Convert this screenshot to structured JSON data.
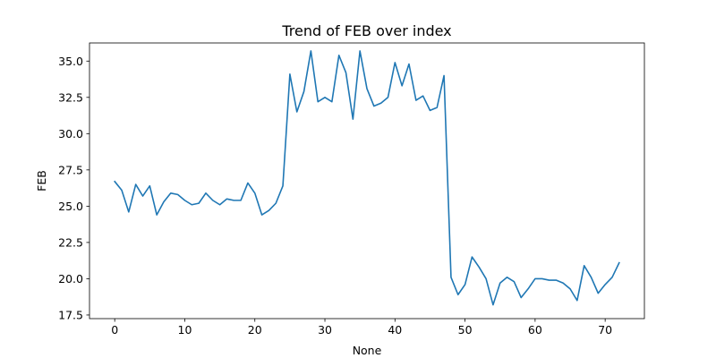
{
  "chart_data": {
    "type": "line",
    "title": "Trend of FEB over index",
    "xlabel": "None",
    "ylabel": "FEB",
    "xlim": [
      -3.6,
      75.6
    ],
    "ylim": [
      17.25,
      36.25
    ],
    "x_ticks": [
      0,
      10,
      20,
      30,
      40,
      50,
      60,
      70
    ],
    "y_ticks": [
      17.5,
      20.0,
      22.5,
      25.0,
      27.5,
      30.0,
      32.5,
      35.0
    ],
    "grid": false,
    "line_color": "#1f77b4",
    "series": [
      {
        "x": [
          0,
          1,
          2,
          3,
          4,
          5,
          6,
          7,
          8,
          9,
          10,
          11,
          12,
          13,
          14,
          15,
          16,
          17,
          18,
          19,
          20,
          21,
          22,
          23,
          24,
          25,
          26,
          27,
          28,
          29,
          30,
          31,
          32,
          33,
          34,
          35,
          36,
          37,
          38,
          39,
          40,
          41,
          42,
          43,
          44,
          45,
          46,
          47,
          48,
          49,
          50,
          51,
          52,
          53,
          54,
          55,
          56,
          57,
          58,
          59,
          60,
          61,
          62,
          63,
          64,
          65,
          66,
          67,
          68,
          69,
          70,
          71,
          72
        ],
        "values": [
          26.7,
          26.1,
          24.6,
          26.5,
          25.7,
          26.4,
          24.4,
          25.3,
          25.9,
          25.8,
          25.4,
          25.1,
          25.2,
          25.9,
          25.4,
          25.1,
          25.5,
          25.4,
          25.4,
          26.6,
          25.9,
          24.4,
          24.7,
          25.2,
          26.4,
          34.1,
          31.5,
          32.9,
          35.7,
          32.2,
          32.5,
          32.2,
          35.4,
          34.2,
          31.0,
          35.7,
          33.1,
          31.9,
          32.1,
          32.5,
          34.9,
          33.3,
          34.8,
          32.3,
          32.6,
          31.6,
          31.8,
          34.0,
          20.1,
          18.9,
          19.6,
          21.5,
          20.8,
          20.0,
          18.2,
          19.7,
          20.1,
          19.8,
          18.7,
          19.3,
          20.0,
          20.0,
          19.9,
          19.9,
          19.7,
          19.3,
          18.5,
          20.9,
          20.1,
          19.0,
          19.6,
          20.1,
          21.1
        ]
      }
    ]
  }
}
